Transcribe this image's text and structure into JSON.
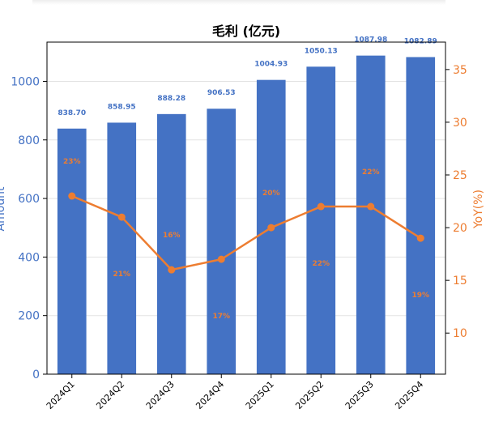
{
  "chart_data": {
    "type": "bar",
    "title": "毛利 (亿元)",
    "categories": [
      "2024Q1",
      "2024Q2",
      "2024Q3",
      "2024Q4",
      "2025Q1",
      "2025Q2",
      "2025Q3",
      "2025Q4"
    ],
    "series": [
      {
        "name": "Amount",
        "type": "bar",
        "axis": "left",
        "values": [
          838.7,
          858.95,
          888.28,
          906.53,
          1004.93,
          1050.13,
          1087.98,
          1082.89
        ],
        "labels": [
          "838.70",
          "858.95",
          "888.28",
          "906.53",
          "1004.93",
          "1050.13",
          "1087.98",
          "1082.89"
        ]
      },
      {
        "name": "YoY(%)",
        "type": "line",
        "axis": "right",
        "values": [
          23,
          21,
          16,
          17,
          20,
          22,
          22,
          19
        ],
        "labels": [
          "23%",
          "21%",
          "16%",
          "17%",
          "20%",
          "22%",
          "22%",
          "19%"
        ]
      }
    ],
    "ylabel": "Amount",
    "y2label": "YoY(%)",
    "ylim": [
      0,
      1134
    ],
    "y2lim": [
      6.1,
      37.6
    ],
    "yticks": [
      0,
      200,
      400,
      600,
      800,
      1000
    ],
    "y2ticks": [
      10,
      15,
      20,
      25,
      30,
      35
    ],
    "grid": true,
    "colors": {
      "bar": "#4472c4",
      "line": "#ed7d31",
      "left_axis": "#4472c4",
      "right_axis": "#ed7d31"
    }
  }
}
